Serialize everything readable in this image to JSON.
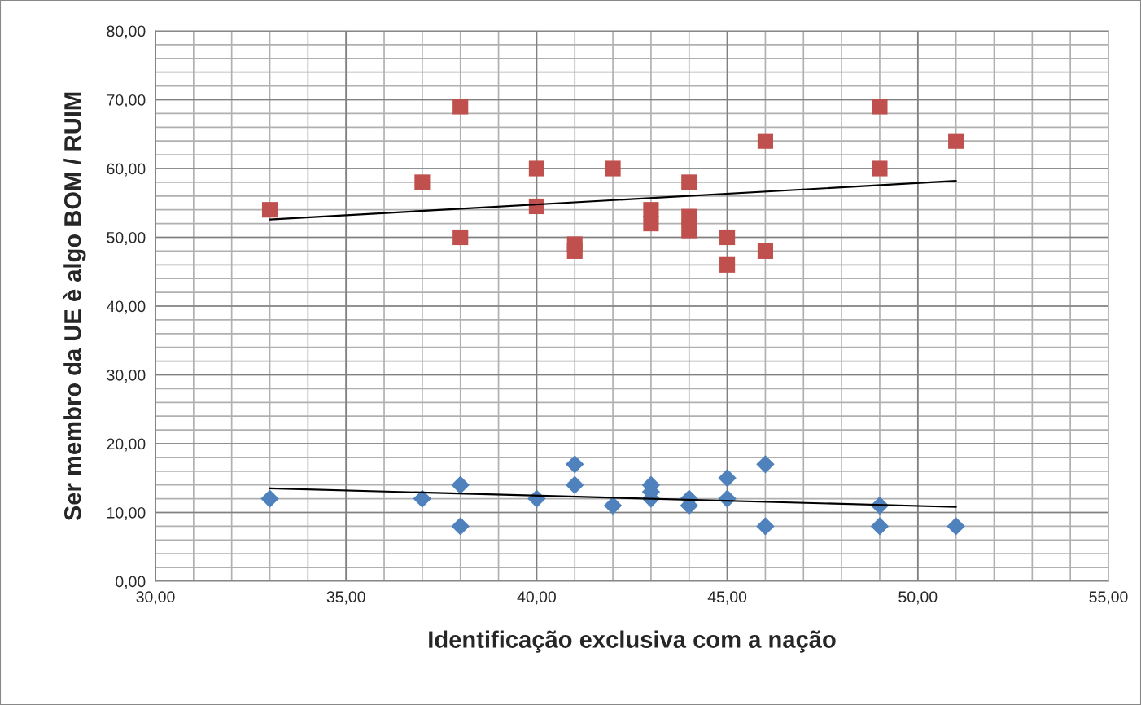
{
  "chart_data": {
    "type": "scatter",
    "xlabel": "Identificação exclusiva com a nação",
    "ylabel": "Ser membro da UE è algo BOM / RUIM",
    "series": [
      {
        "marker": "square",
        "color": "#c0504d",
        "x": [
          33,
          37,
          38,
          38,
          40,
          40,
          41,
          41,
          42,
          43,
          43,
          44,
          44,
          44,
          45,
          45,
          46,
          46,
          49,
          49,
          51
        ],
        "values": [
          54,
          58,
          69,
          50,
          60,
          54.5,
          49,
          48,
          60,
          54,
          52,
          58,
          53,
          51,
          50,
          46,
          64,
          48,
          69,
          60,
          64
        ]
      },
      {
        "marker": "diamond",
        "color": "#4f81bd",
        "x": [
          33,
          37,
          38,
          38,
          40,
          41,
          41,
          42,
          43,
          43,
          43,
          44,
          44,
          45,
          45,
          46,
          46,
          49,
          49,
          51
        ],
        "values": [
          12,
          12,
          14,
          8,
          12,
          17,
          14,
          11,
          14,
          13,
          12,
          12,
          11,
          15,
          12,
          17,
          8,
          11,
          8,
          8
        ]
      },
      {
        "type": "line",
        "marker": "none",
        "color": "#000000",
        "x": [
          33,
          51
        ],
        "values": [
          52.6,
          58.2
        ]
      },
      {
        "type": "line",
        "marker": "none",
        "color": "#000000",
        "x": [
          33,
          51
        ],
        "values": [
          13.5,
          10.8
        ]
      }
    ],
    "xlim": [
      30,
      55
    ],
    "xticks": [
      {
        "value": 30,
        "label": "30,00"
      },
      {
        "value": 35,
        "label": "35,00"
      },
      {
        "value": 40,
        "label": "40,00"
      },
      {
        "value": 45,
        "label": "45,00"
      },
      {
        "value": 50,
        "label": "50,00"
      },
      {
        "value": 55,
        "label": "55,00"
      }
    ],
    "ylim": [
      0,
      80
    ],
    "yticks": [
      {
        "value": 0,
        "label": "0,00"
      },
      {
        "value": 10,
        "label": "10,00"
      },
      {
        "value": 20,
        "label": "20,00"
      },
      {
        "value": 30,
        "label": "30,00"
      },
      {
        "value": 40,
        "label": "40,00"
      },
      {
        "value": 50,
        "label": "50,00"
      },
      {
        "value": 60,
        "label": "60,00"
      },
      {
        "value": 70,
        "label": "70,00"
      },
      {
        "value": 80,
        "label": "80,00"
      }
    ],
    "grid": true,
    "legend": false
  }
}
